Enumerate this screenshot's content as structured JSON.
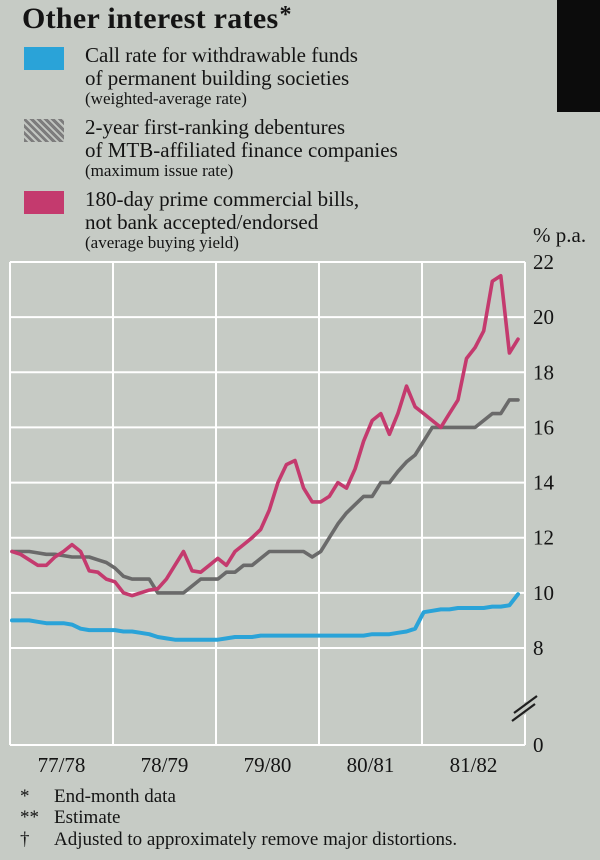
{
  "title": "Other interest rates",
  "title_marker": "*",
  "colors": {
    "background": "#c6cbc5",
    "grid": "#ffffff",
    "text": "#141414",
    "blue": "#2aa3d8",
    "gray": "#6a6a6a",
    "pink": "#c43a6e"
  },
  "legend": [
    {
      "line1": "Call rate for withdrawable funds",
      "line2": "of permanent building societies",
      "note": "(weighted-average rate)",
      "color": "#2aa3d8",
      "pattern": "solid"
    },
    {
      "line1": "2-year first-ranking debentures",
      "line2": "of MTB-affiliated finance companies",
      "note": "(maximum issue rate)",
      "color": "#7d7d7d",
      "pattern": "diagonal-hatch"
    },
    {
      "line1": "180-day prime commercial bills,",
      "line2": "not bank accepted/endorsed",
      "note": "(average buying yield)",
      "color": "#c43a6e",
      "pattern": "solid"
    }
  ],
  "footnotes": [
    {
      "symbol": "*",
      "text": "End-month data"
    },
    {
      "symbol": "**",
      "text": "Estimate"
    },
    {
      "symbol": "†",
      "text": "Adjusted to approximately remove major distortions."
    }
  ],
  "chart_data": {
    "type": "line",
    "title": "Other interest rates",
    "y_axis_unit": "% p.a.",
    "x_unit": "month (end-month observations)",
    "x_categories": [
      "77/78",
      "78/79",
      "79/80",
      "80/81",
      "81/82"
    ],
    "y_ticks": [
      22,
      20,
      18,
      16,
      14,
      12,
      10,
      8,
      0
    ],
    "ylim": [
      8,
      22
    ],
    "axis_break_between": [
      0,
      8
    ],
    "grid": true,
    "legend_position": "top-left",
    "series": [
      {
        "id": "call-rate",
        "name": "Call rate for withdrawable funds of permanent building societies (weighted-average rate)",
        "color": "#2aa3d8",
        "width": 4,
        "values": [
          9.0,
          9.0,
          9.0,
          8.95,
          8.9,
          8.9,
          8.9,
          8.85,
          8.7,
          8.65,
          8.65,
          8.65,
          8.65,
          8.6,
          8.6,
          8.55,
          8.5,
          8.4,
          8.35,
          8.3,
          8.3,
          8.3,
          8.3,
          8.3,
          8.3,
          8.35,
          8.4,
          8.4,
          8.4,
          8.45,
          8.45,
          8.45,
          8.45,
          8.45,
          8.45,
          8.45,
          8.45,
          8.45,
          8.45,
          8.45,
          8.45,
          8.45,
          8.5,
          8.5,
          8.5,
          8.55,
          8.6,
          8.7,
          9.3,
          9.35,
          9.4,
          9.4,
          9.45,
          9.45,
          9.45,
          9.45,
          9.5,
          9.5,
          9.55,
          9.95
        ]
      },
      {
        "id": "debentures",
        "name": "2-year first-ranking debentures of MTB-affiliated finance companies (maximum issue rate)",
        "color": "#6a6a6a",
        "width": 3.6,
        "values": [
          11.5,
          11.5,
          11.5,
          11.45,
          11.4,
          11.4,
          11.35,
          11.3,
          11.3,
          11.3,
          11.2,
          11.1,
          10.9,
          10.6,
          10.5,
          10.5,
          10.5,
          10.0,
          10.0,
          10.0,
          10.0,
          10.25,
          10.5,
          10.5,
          10.5,
          10.75,
          10.75,
          11.0,
          11.0,
          11.25,
          11.5,
          11.5,
          11.5,
          11.5,
          11.5,
          11.3,
          11.5,
          12.0,
          12.5,
          12.9,
          13.2,
          13.5,
          13.5,
          14.0,
          14.0,
          14.4,
          14.75,
          15.0,
          15.5,
          16.0,
          16.0,
          16.0,
          16.0,
          16.0,
          16.0,
          16.25,
          16.5,
          16.5,
          17.0,
          17.0
        ]
      },
      {
        "id": "commercial-bills",
        "name": "180-day prime commercial bills, not bank accepted/endorsed (average buying yield)",
        "color": "#c43a6e",
        "width": 3.6,
        "values": [
          11.5,
          11.4,
          11.2,
          11.0,
          11.0,
          11.3,
          11.5,
          11.75,
          11.5,
          10.8,
          10.75,
          10.5,
          10.4,
          10.0,
          9.9,
          10.0,
          10.1,
          10.15,
          10.5,
          11.0,
          11.5,
          10.8,
          10.75,
          11.0,
          11.25,
          11.0,
          11.5,
          11.75,
          12.0,
          12.3,
          13.0,
          14.0,
          14.65,
          14.8,
          13.8,
          13.3,
          13.3,
          13.5,
          14.0,
          13.8,
          14.5,
          15.5,
          16.25,
          16.5,
          15.75,
          16.5,
          17.5,
          16.75,
          16.5,
          16.25,
          16.0,
          16.5,
          17.0,
          18.5,
          18.9,
          19.5,
          21.3,
          21.5,
          18.7,
          19.2
        ]
      }
    ]
  }
}
